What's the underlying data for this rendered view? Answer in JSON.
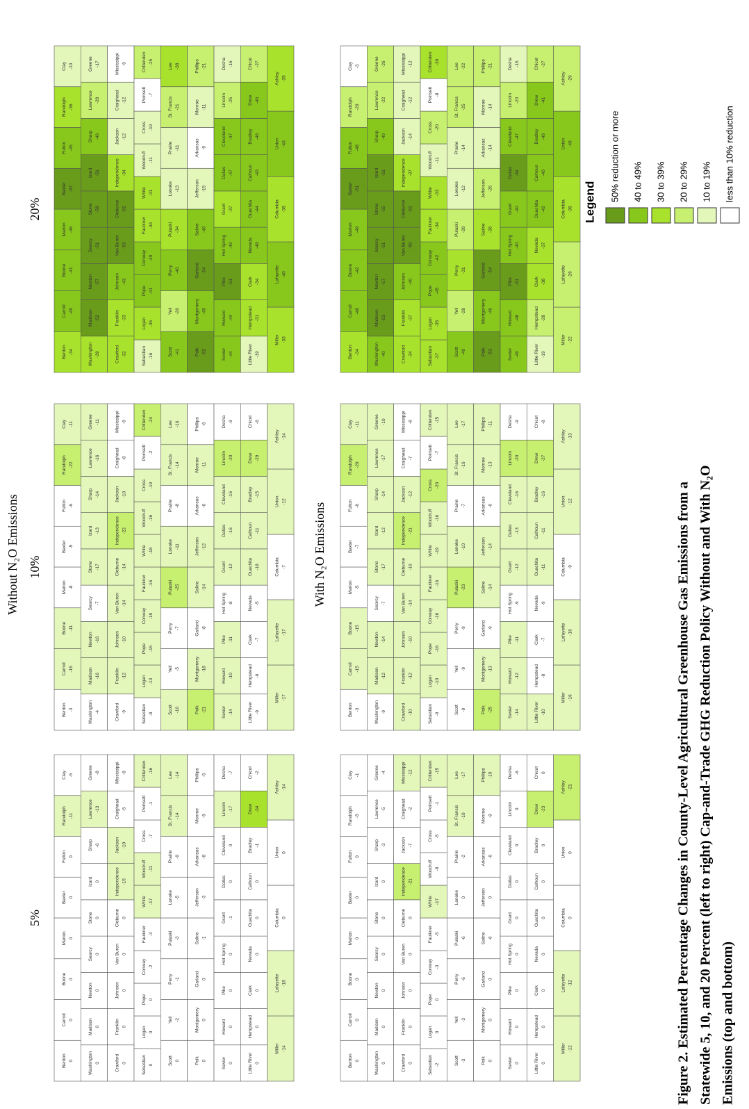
{
  "title_without": "Without N₂O Emissions",
  "title_with": "With N₂O Emissions",
  "scenario_labels": [
    "5%",
    "10%",
    "20%"
  ],
  "county_rows": [
    [
      "Benton",
      "Carroll",
      "Boone",
      "Marion",
      "Baxter",
      "Fulton",
      "Randolph",
      "Clay"
    ],
    [
      "Washington",
      "Madison",
      "Newton",
      "Searcy",
      "Stone",
      "Izard",
      "Sharp",
      "Lawrence",
      "Greene"
    ],
    [
      "Crawford",
      "Franklin",
      "Johnson",
      "Van Buren",
      "Cleburne",
      "Independence",
      "Jackson",
      "Craighead",
      "Mississippi"
    ],
    [
      "Sebastian",
      "Logan",
      "Pope",
      "Conway",
      "Faulkner",
      "White",
      "Woodruff",
      "Cross",
      "Poinsett",
      "Crittenden"
    ],
    [
      "Scott",
      "Yell",
      "Perry",
      "Pulaski",
      "Lonoke",
      "Prairie",
      "St. Francis",
      "Lee"
    ],
    [
      "Polk",
      "Montgomery",
      "Garland",
      "Saline",
      "Jefferson",
      "Arkansas",
      "Monroe",
      "Phillips"
    ],
    [
      "Sevier",
      "Howard",
      "Pike",
      "Hot Spring",
      "Grant",
      "Dallas",
      "Cleveland",
      "Lincoln",
      "Desha"
    ],
    [
      "Little River",
      "Hempstead",
      "Clark",
      "Nevada",
      "Ouachita",
      "Calhoun",
      "Bradley",
      "Drew",
      "Chicot"
    ],
    [
      "Miller",
      "Lafayette",
      "Columbia",
      "Union",
      "Ashley"
    ]
  ],
  "maps": [
    {
      "values": [
        [
          0,
          0,
          0,
          0,
          0,
          0,
          -11,
          -5
        ],
        [
          0,
          0,
          0,
          0,
          0,
          0,
          -6,
          -13,
          -8
        ],
        [
          0,
          0,
          0,
          0,
          0,
          -15,
          -10,
          -5,
          -8
        ],
        [
          0,
          0,
          0,
          -2,
          -3,
          -17,
          -11,
          -7,
          -1,
          -16
        ],
        [
          0,
          -2,
          -1,
          -3,
          -5,
          -9,
          -14,
          -14
        ],
        [
          0,
          0,
          0,
          -1,
          -3,
          -8,
          -9,
          -5
        ],
        [
          0,
          0,
          0,
          0,
          -1,
          0,
          0,
          -17,
          -7
        ],
        [
          0,
          0,
          0,
          0,
          0,
          0,
          -1,
          -34,
          -2
        ],
        [
          -14,
          -18,
          0,
          0,
          -14
        ]
      ]
    },
    {
      "values": [
        [
          -3,
          -15,
          -11,
          -8,
          -5,
          -6,
          -22,
          -11
        ],
        [
          -4,
          -16,
          -16,
          -7,
          -17,
          -13,
          -14,
          -16,
          -11
        ],
        [
          -9,
          -12,
          -10,
          -14,
          -14,
          -22,
          -10,
          -8,
          -9
        ],
        [
          -8,
          -13,
          -15,
          -19,
          -16,
          -18,
          -16,
          -19,
          -2,
          -24
        ],
        [
          -10,
          -5,
          -7,
          -25,
          -11,
          -8,
          -14,
          -16
        ],
        [
          -21,
          -18,
          -8,
          -14,
          -12,
          -6,
          -11,
          -6
        ],
        [
          -14,
          -10,
          -11,
          -8,
          -12,
          -16,
          -16,
          -20,
          -9
        ],
        [
          -9,
          -6,
          -7,
          -5,
          -18,
          -11,
          -15,
          -29,
          -6
        ],
        [
          -17,
          -17,
          -7,
          -12,
          -14
        ]
      ]
    },
    {
      "values": [
        [
          -34,
          -49,
          -41,
          -46,
          -57,
          -45,
          -36,
          -10
        ],
        [
          -39,
          -52,
          -57,
          -51,
          -58,
          -51,
          -49,
          -28,
          -17
        ],
        [
          -32,
          -33,
          -43,
          -53,
          -51,
          -34,
          -12,
          -12,
          -9
        ],
        [
          -16,
          -35,
          -41,
          -49,
          -34,
          -31,
          -11,
          -19,
          -7,
          -25
        ],
        [
          -41,
          -26,
          -40,
          -34,
          -13,
          -11,
          -21,
          -38
        ],
        [
          -52,
          -45,
          -54,
          -46,
          -15,
          -9,
          -11,
          -21
        ],
        [
          -44,
          -44,
          -51,
          -49,
          -37,
          -47,
          -47,
          -25,
          -16
        ],
        [
          -19,
          -31,
          -34,
          -48,
          -44,
          -43,
          -46,
          -46,
          -27
        ],
        [
          -33,
          -40,
          -38,
          -46,
          -35
        ]
      ]
    },
    {
      "values": [
        [
          0,
          0,
          0,
          0,
          0,
          0,
          -5,
          -1
        ],
        [
          0,
          0,
          0,
          0,
          0,
          0,
          -3,
          -5,
          -4
        ],
        [
          0,
          0,
          0,
          0,
          0,
          -21,
          -7,
          -2,
          -12
        ],
        [
          -2,
          0,
          0,
          -3,
          -5,
          -17,
          -8,
          -5,
          -1,
          -15
        ],
        [
          -3,
          -3,
          -6,
          -6,
          0,
          -2,
          -10,
          -17
        ],
        [
          0,
          0,
          0,
          -6,
          0,
          -6,
          -9,
          -10
        ],
        [
          0,
          0,
          0,
          0,
          0,
          0,
          0,
          0,
          -6
        ],
        [
          0,
          0,
          0,
          0,
          0,
          0,
          0,
          -23,
          0
        ],
        [
          -12,
          -12,
          0,
          0,
          -21
        ]
      ]
    },
    {
      "values": [
        [
          -3,
          -15,
          -15,
          -5,
          -7,
          -6,
          -29,
          -11
        ],
        [
          -9,
          -12,
          -14,
          -7,
          -17,
          -12,
          -14,
          -17,
          -10
        ],
        [
          -10,
          -12,
          -10,
          -14,
          -16,
          -21,
          -12,
          -7,
          -8
        ],
        [
          -9,
          -10,
          -16,
          -16,
          -16,
          -19,
          -16,
          -20,
          -7,
          -15
        ],
        [
          -9,
          -9,
          -9,
          -23,
          -10,
          -7,
          -16,
          -17
        ],
        [
          -25,
          -13,
          -9,
          -14,
          -14,
          -6,
          -13,
          -11
        ],
        [
          -14,
          -12,
          -11,
          -9,
          -12,
          -13,
          -16,
          -20,
          -9
        ],
        [
          -10,
          -8,
          -7,
          -9,
          -11,
          -11,
          -16,
          -27,
          -8
        ],
        [
          -16,
          -16,
          -9,
          -12,
          -13
        ]
      ]
    },
    {
      "values": [
        [
          -34,
          -48,
          -42,
          -49,
          -51,
          -48,
          -29,
          -3
        ],
        [
          -40,
          -53,
          -57,
          -51,
          -55,
          -51,
          -49,
          -22,
          -26
        ],
        [
          -34,
          -37,
          -40,
          -50,
          -52,
          -37,
          -14,
          -12,
          -12
        ],
        [
          -37,
          -35,
          -45,
          -42,
          -34,
          -33,
          -11,
          -20,
          -8,
          -30
        ],
        [
          -40,
          -28,
          -31,
          -28,
          -12,
          -14,
          -25,
          -22
        ],
        [
          -53,
          -46,
          -54,
          -36,
          -26,
          -14,
          -14,
          -21
        ],
        [
          -49,
          -48,
          -51,
          -40,
          -40,
          -54,
          -47,
          -23,
          -15
        ],
        [
          -19,
          -28,
          -38,
          -37,
          -42,
          -40,
          -49,
          -41,
          -27
        ],
        [
          -22,
          -26,
          -36,
          -49,
          -29
        ]
      ]
    }
  ],
  "legend": {
    "title": "Legend",
    "items": [
      {
        "label": "50% reduction or more",
        "color": "#6a9c1c",
        "min": 50
      },
      {
        "label": "40 to 49%",
        "color": "#88c81c",
        "min": 40
      },
      {
        "label": "30 to 39%",
        "color": "#a8e22c",
        "min": 30
      },
      {
        "label": "20 to 29%",
        "color": "#c8f070",
        "min": 20
      },
      {
        "label": "10 to 19%",
        "color": "#e4f7bb",
        "min": 10
      },
      {
        "label": "less than 10% reduction",
        "color": "#ffffff"
      }
    ]
  },
  "caption": [
    "Figure 2. Estimated Percentage Changes in County-Level Agricultural Greenhouse Gas Emissions from a",
    "Statewide 5, 10, and 20 Percent (left to right) Cap-and-Trade GHG Reduction Policy Without and With N₂O",
    "Emissions (top and bottom)"
  ]
}
